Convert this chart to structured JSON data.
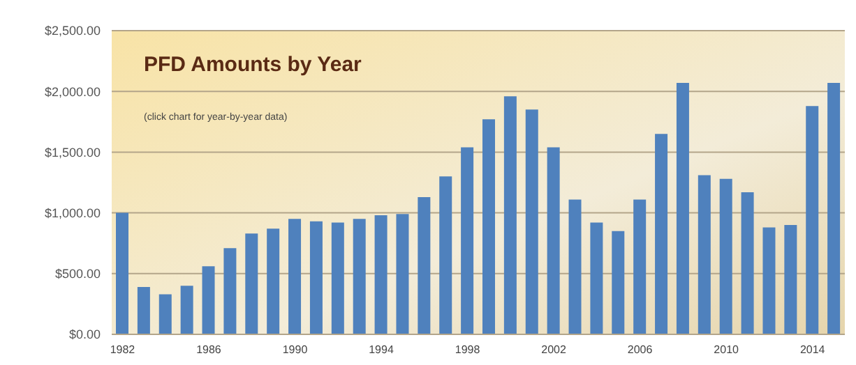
{
  "chart_data": {
    "type": "bar",
    "title": "PFD Amounts by Year",
    "annotations": [
      "(click chart for year-by-year data)"
    ],
    "categories": [
      "1982",
      null,
      null,
      null,
      "1986",
      null,
      null,
      null,
      "1990",
      null,
      null,
      null,
      "1994",
      null,
      null,
      null,
      "1998",
      null,
      null,
      null,
      "2002",
      null,
      null,
      null,
      "2006",
      null,
      null,
      null,
      "2010",
      null,
      null,
      null,
      "2014",
      null
    ],
    "values": [
      1000,
      390,
      330,
      400,
      560,
      710,
      830,
      870,
      950,
      930,
      920,
      950,
      980,
      990,
      1130,
      1300,
      1540,
      1770,
      1960,
      1850,
      1540,
      1110,
      920,
      850,
      1110,
      1650,
      2070,
      1310,
      1280,
      1170,
      880,
      900,
      1880,
      2070
    ],
    "color": "#4f81bd",
    "ylim": [
      0,
      2500
    ],
    "yticks": [
      {
        "value": 0,
        "label": "$0.00"
      },
      {
        "value": 500,
        "label": "$500.00"
      },
      {
        "value": 1000,
        "label": "$1,000.00"
      },
      {
        "value": 1500,
        "label": "$1,500.00"
      },
      {
        "value": 2000,
        "label": "$2,000.00"
      },
      {
        "value": 2500,
        "label": "$2,500.00"
      }
    ],
    "grid": "y"
  }
}
